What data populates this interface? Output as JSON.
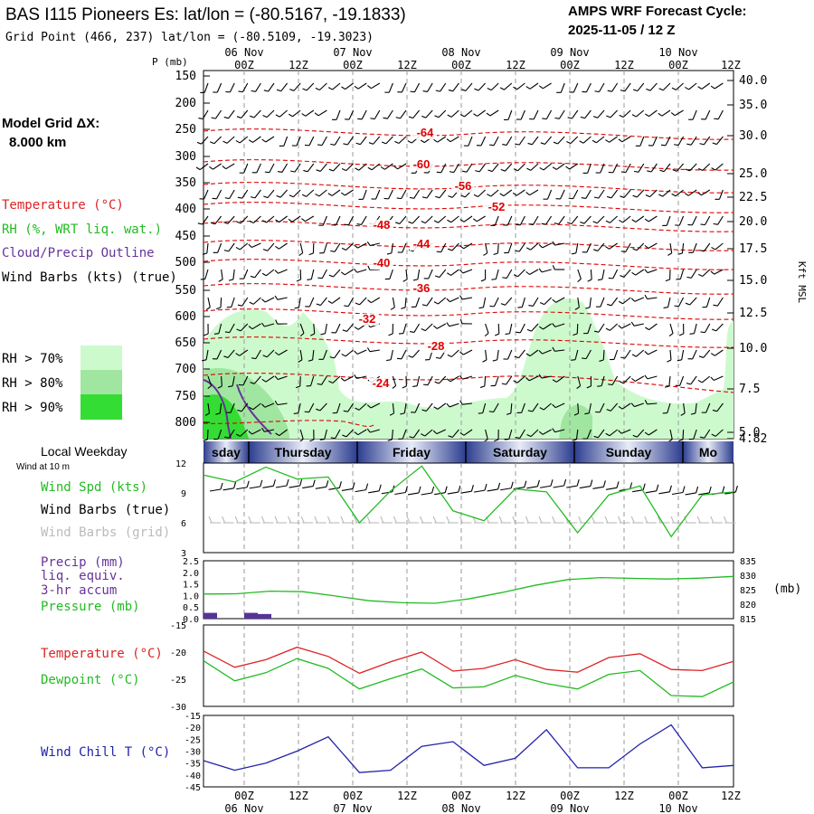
{
  "header": {
    "title": "BAS I115 Pioneers Es:  lat/lon = (-80.5167, -19.1833)",
    "subtitle": "Grid Point (466, 237) lat/lon = (-80.5109, -19.3023)",
    "cycle_label": "AMPS WRF Forecast Cycle:",
    "cycle_value": "2025-11-05 / 12  Z"
  },
  "time_axis": {
    "hour_labels": [
      "00Z",
      "12Z",
      "00Z",
      "12Z",
      "00Z",
      "12Z",
      "00Z",
      "12Z",
      "00Z",
      "12Z"
    ],
    "date_labels": [
      "06 Nov",
      "07 Nov",
      "08 Nov",
      "09 Nov",
      "10 Nov"
    ],
    "weekdays": [
      "sday",
      "Thursday",
      "Friday",
      "Saturday",
      "Sunday",
      "Mo"
    ]
  },
  "legend": {
    "grid_label": "Model Grid ΔX:",
    "grid_value": "8.000 km",
    "temperature": "Temperature (°C)",
    "rh": "RH (%, WRT liq. wat.)",
    "cloud": "Cloud/Precip Outline",
    "wind": "Wind Barbs (kts) (true)",
    "rh70": "RH > 70%",
    "rh80": "RH > 80%",
    "rh90": "RH > 90%",
    "colors": {
      "rh70": "#cdfacd",
      "rh80": "#a0e6a0",
      "rh90": "#33dd33",
      "temp": "#dd0000",
      "cloud": "#663399"
    }
  },
  "upper_panel": {
    "pressure_unit": "P (mb)",
    "pressure_levels": [
      "150",
      "200",
      "250",
      "300",
      "350",
      "400",
      "450",
      "500",
      "550",
      "600",
      "650",
      "700",
      "750",
      "800"
    ],
    "height_labels": [
      "40.0",
      "35.0",
      "30.0",
      "25.0",
      "22.5",
      "20.0",
      "17.5",
      "15.0",
      "12.5",
      "10.0",
      "7.5",
      "5.0",
      "4.82"
    ],
    "height_unit": "Kft MSL",
    "isotherm_labels": [
      "-64",
      "-60",
      "-56",
      "-52",
      "-48",
      "-44",
      "-40",
      "-36",
      "-32",
      "-28",
      "-24"
    ]
  },
  "surface_labels": {
    "weekday_label": "Local Weekday",
    "wind_at": "Wind at 10 m",
    "wind_spd": "Wind Spd (kts)",
    "wind_barbs_true": "Wind Barbs (true)",
    "wind_barbs_grid": "Wind Barbs (grid)",
    "precip": "Precip (mm)",
    "precip2": "liq. equiv.",
    "precip3": "3-hr accum",
    "pressure": "Pressure (mb)",
    "pressure_unit": "(mb)",
    "temperature": "Temperature (°C)",
    "dewpoint": "Dewpoint (°C)",
    "windchill": "Wind Chill T (°C)"
  },
  "chart_data": [
    {
      "type": "line",
      "name": "wind-speed",
      "ylim": [
        3,
        12
      ],
      "y_ticks": [
        "12",
        "9",
        "6",
        "3"
      ],
      "series": [
        {
          "name": "Wind Spd (kts)",
          "color": "#22bb22",
          "values": [
            10.8,
            10.1,
            11.6,
            10.4,
            10.6,
            6.0,
            9.2,
            11.7,
            7.2,
            6.2,
            9.4,
            9.1,
            5.0,
            8.8,
            9.7,
            4.6,
            8.8,
            9.1
          ]
        }
      ]
    },
    {
      "type": "line",
      "name": "precip-pressure",
      "precip_ylim": [
        0,
        2.5
      ],
      "precip_ticks": [
        "2.5",
        "2.0",
        "1.5",
        "1.0",
        "0.5",
        "0.0"
      ],
      "pressure_ylim": [
        815,
        835
      ],
      "pressure_ticks": [
        "835",
        "830",
        "825",
        "820",
        "815"
      ],
      "series": [
        {
          "name": "Pressure (mb)",
          "color": "#22bb22",
          "values": [
            823.5,
            823.6,
            824.5,
            824.3,
            822.8,
            821.2,
            820.5,
            820.3,
            821.8,
            824.0,
            826.5,
            828.5,
            829.2,
            828.9,
            828.7,
            829.0,
            829.6
          ]
        }
      ],
      "precip_bars": [
        0.25,
        0.0,
        0.25,
        0.2
      ]
    },
    {
      "type": "line",
      "name": "temperature-dewpoint",
      "ylim": [
        -30,
        -15
      ],
      "y_ticks": [
        "-15",
        "-20",
        "-25",
        "-30"
      ],
      "series": [
        {
          "name": "Temperature (°C)",
          "color": "#dd2222",
          "values": [
            -19.8,
            -22.8,
            -21.4,
            -19.1,
            -20.8,
            -23.9,
            -21.8,
            -20.0,
            -23.5,
            -23.0,
            -21.4,
            -23.2,
            -23.7,
            -21.0,
            -20.3,
            -23.2,
            -23.4,
            -21.7
          ]
        },
        {
          "name": "Dewpoint (°C)",
          "color": "#22bb22",
          "values": [
            -21.6,
            -25.3,
            -23.8,
            -21.2,
            -23.0,
            -26.8,
            -24.9,
            -23.1,
            -26.6,
            -26.4,
            -24.3,
            -25.8,
            -26.8,
            -24.1,
            -23.4,
            -28.0,
            -28.2,
            -25.5
          ]
        }
      ]
    },
    {
      "type": "line",
      "name": "wind-chill",
      "ylim": [
        -45,
        -15
      ],
      "y_ticks": [
        "-15",
        "-20",
        "-25",
        "-30",
        "-35",
        "-40",
        "-45"
      ],
      "series": [
        {
          "name": "Wind Chill T (°C)",
          "color": "#2222aa",
          "values": [
            -34,
            -38,
            -35,
            -30,
            -24,
            -39,
            -38,
            -28,
            -26,
            -36,
            -33,
            -21,
            -37,
            -37,
            -27,
            -19,
            -37,
            -36
          ]
        }
      ]
    }
  ]
}
